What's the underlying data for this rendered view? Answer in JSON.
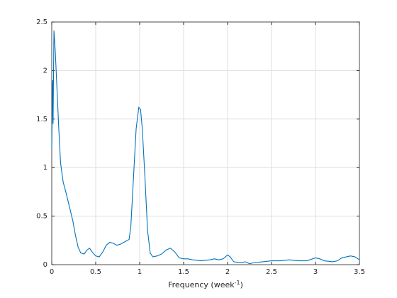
{
  "chart_data": {
    "type": "line",
    "xlabel": [
      "Frequency (week",
      "-1",
      ")"
    ],
    "x": [
      0,
      0.01,
      0.015,
      0.025,
      0.04,
      0.06,
      0.08,
      0.1,
      0.13,
      0.16,
      0.2,
      0.24,
      0.27,
      0.3,
      0.33,
      0.37,
      0.4,
      0.43,
      0.46,
      0.5,
      0.54,
      0.58,
      0.62,
      0.66,
      0.7,
      0.74,
      0.78,
      0.84,
      0.88,
      0.9,
      0.93,
      0.96,
      0.99,
      1.01,
      1.03,
      1.06,
      1.09,
      1.12,
      1.15,
      1.2,
      1.25,
      1.3,
      1.35,
      1.4,
      1.45,
      1.5,
      1.55,
      1.6,
      1.7,
      1.8,
      1.85,
      1.9,
      1.95,
      2.0,
      2.03,
      2.07,
      2.15,
      2.2,
      2.25,
      2.3,
      2.4,
      2.5,
      2.6,
      2.7,
      2.8,
      2.9,
      3.0,
      3.05,
      3.1,
      3.2,
      3.25,
      3.3,
      3.4,
      3.45,
      3.5
    ],
    "series": [
      {
        "color": "#0072bd",
        "values": [
          1.2,
          1.9,
          1.45,
          2.41,
          2.2,
          1.8,
          1.4,
          1.05,
          0.85,
          0.75,
          0.6,
          0.45,
          0.3,
          0.18,
          0.12,
          0.11,
          0.15,
          0.17,
          0.13,
          0.09,
          0.08,
          0.13,
          0.2,
          0.23,
          0.22,
          0.2,
          0.21,
          0.24,
          0.26,
          0.4,
          0.9,
          1.4,
          1.62,
          1.6,
          1.4,
          0.9,
          0.35,
          0.12,
          0.08,
          0.09,
          0.11,
          0.15,
          0.17,
          0.13,
          0.07,
          0.06,
          0.06,
          0.05,
          0.04,
          0.05,
          0.06,
          0.05,
          0.06,
          0.1,
          0.08,
          0.03,
          0.02,
          0.03,
          0.01,
          0.02,
          0.03,
          0.04,
          0.04,
          0.05,
          0.04,
          0.04,
          0.07,
          0.06,
          0.04,
          0.03,
          0.04,
          0.07,
          0.09,
          0.08,
          0.05
        ]
      }
    ],
    "xlim": [
      0,
      3.5
    ],
    "ylim": [
      0,
      2.5
    ],
    "xticks": [
      0,
      0.5,
      1,
      1.5,
      2,
      2.5,
      3,
      3.5
    ],
    "yticks": [
      0,
      0.5,
      1,
      1.5,
      2,
      2.5
    ],
    "grid": true
  }
}
